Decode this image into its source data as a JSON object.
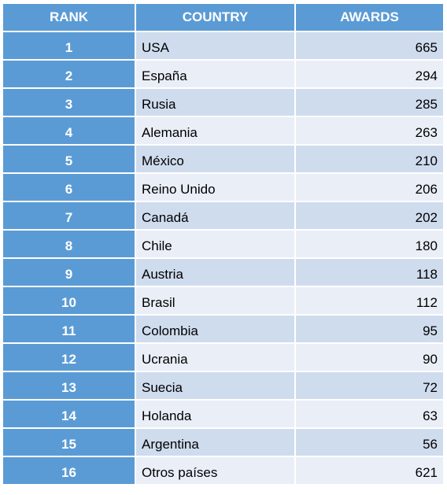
{
  "headers": {
    "rank": "RANK",
    "country": "COUNTRY",
    "awards": "AWARDS"
  },
  "rows": [
    {
      "rank": "1",
      "country": "USA",
      "awards": "665"
    },
    {
      "rank": "2",
      "country": "España",
      "awards": "294"
    },
    {
      "rank": "3",
      "country": "Rusia",
      "awards": "285"
    },
    {
      "rank": "4",
      "country": "Alemania",
      "awards": "263"
    },
    {
      "rank": "5",
      "country": "México",
      "awards": "210"
    },
    {
      "rank": "6",
      "country": "Reino Unido",
      "awards": "206"
    },
    {
      "rank": "7",
      "country": "Canadá",
      "awards": "202"
    },
    {
      "rank": "8",
      "country": "Chile",
      "awards": "180"
    },
    {
      "rank": "9",
      "country": "Austria",
      "awards": "118"
    },
    {
      "rank": "10",
      "country": "Brasil",
      "awards": "112"
    },
    {
      "rank": "11",
      "country": "Colombia",
      "awards": "95"
    },
    {
      "rank": "12",
      "country": "Ucrania",
      "awards": "90"
    },
    {
      "rank": "13",
      "country": "Suecia",
      "awards": "72"
    },
    {
      "rank": "14",
      "country": "Holanda",
      "awards": "63"
    },
    {
      "rank": "15",
      "country": "Argentina",
      "awards": "56"
    },
    {
      "rank": "16",
      "country": "Otros países",
      "awards": "621"
    }
  ],
  "colors": {
    "header_bg": "#5b9bd5",
    "row_odd_bg": "#cfdcee",
    "row_even_bg": "#e9eef7",
    "border": "#ffffff"
  }
}
